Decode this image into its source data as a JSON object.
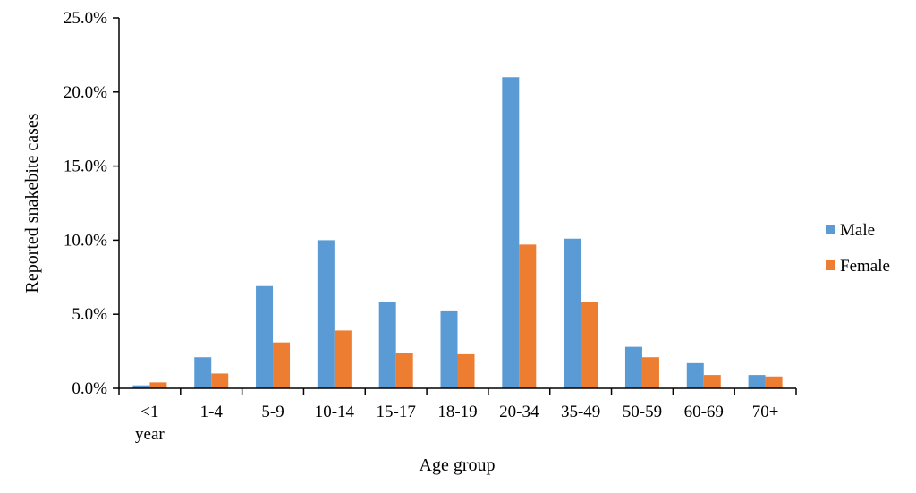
{
  "chart_data": {
    "type": "bar",
    "title": "",
    "xlabel": "Age group",
    "ylabel": "Reported snakebite cases",
    "ylim": [
      0,
      25
    ],
    "yticks": [
      "0.0%",
      "5.0%",
      "10.0%",
      "15.0%",
      "20.0%",
      "25.0%"
    ],
    "categories": [
      "<1 year",
      "1-4",
      "5-9",
      "10-14",
      "15-17",
      "18-19",
      "20-34",
      "35-49",
      "50-59",
      "60-69",
      "70+"
    ],
    "category_lines": [
      [
        "<1",
        "year"
      ],
      [
        "1-4"
      ],
      [
        "5-9"
      ],
      [
        "10-14"
      ],
      [
        "15-17"
      ],
      [
        "18-19"
      ],
      [
        "20-34"
      ],
      [
        "35-49"
      ],
      [
        "50-59"
      ],
      [
        "60-69"
      ],
      [
        "70+"
      ]
    ],
    "series": [
      {
        "name": "Male",
        "color": "#5B9BD5",
        "values": [
          0.2,
          2.1,
          6.9,
          10.0,
          5.8,
          5.2,
          21.0,
          10.1,
          2.8,
          1.7,
          0.9
        ]
      },
      {
        "name": "Female",
        "color": "#ED7D31",
        "values": [
          0.4,
          1.0,
          3.1,
          3.9,
          2.4,
          2.3,
          9.7,
          5.8,
          2.1,
          0.9,
          0.8
        ]
      }
    ],
    "grid": false,
    "legend": "right"
  }
}
